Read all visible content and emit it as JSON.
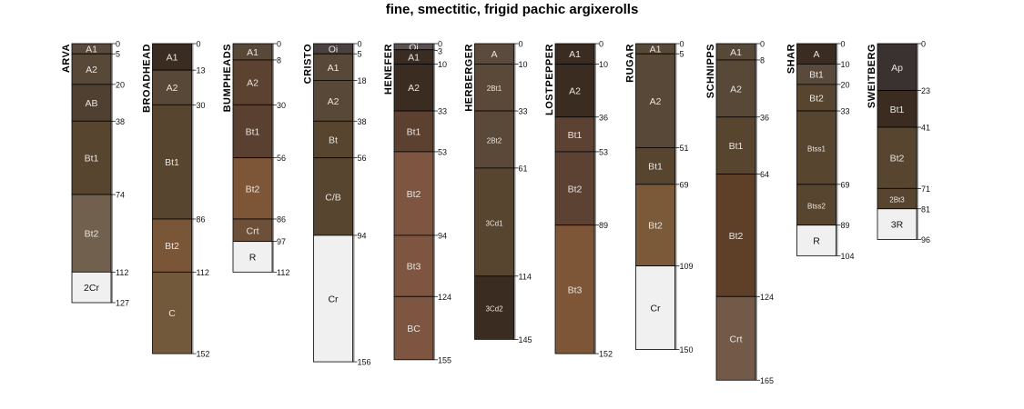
{
  "title": "fine, smectitic, frigid pachic argixerolls",
  "profiles": [
    {
      "name": "ARVA",
      "horizons": [
        {
          "name": "A1",
          "top": 0,
          "bottom": 5,
          "color": "#5a4a3c"
        },
        {
          "name": "A2",
          "top": 5,
          "bottom": 20,
          "color": "#574838"
        },
        {
          "name": "AB",
          "top": 20,
          "bottom": 38,
          "color": "#4f4032"
        },
        {
          "name": "Bt1",
          "top": 38,
          "bottom": 74,
          "color": "#574530"
        },
        {
          "name": "Bt2",
          "top": 74,
          "bottom": 112,
          "color": "#72604f"
        },
        {
          "name": "2Cr",
          "top": 112,
          "bottom": 127,
          "color": "#f0f0f0"
        }
      ]
    },
    {
      "name": "BROADHEAD",
      "horizons": [
        {
          "name": "A1",
          "top": 0,
          "bottom": 13,
          "color": "#3a2c20"
        },
        {
          "name": "A2",
          "top": 13,
          "bottom": 30,
          "color": "#574838"
        },
        {
          "name": "Bt1",
          "top": 30,
          "bottom": 86,
          "color": "#57452f"
        },
        {
          "name": "Bt2",
          "top": 86,
          "bottom": 112,
          "color": "#7a5638"
        },
        {
          "name": "C",
          "top": 112,
          "bottom": 152,
          "color": "#73593c"
        }
      ]
    },
    {
      "name": "BUMPHEADS",
      "horizons": [
        {
          "name": "A1",
          "top": 0,
          "bottom": 8,
          "color": "#584838"
        },
        {
          "name": "A2",
          "top": 8,
          "bottom": 30,
          "color": "#5c4230"
        },
        {
          "name": "Bt1",
          "top": 30,
          "bottom": 56,
          "color": "#5a4030"
        },
        {
          "name": "Bt2",
          "top": 56,
          "bottom": 86,
          "color": "#7d5638"
        },
        {
          "name": "Crt",
          "top": 86,
          "bottom": 97,
          "color": "#6e5038"
        },
        {
          "name": "R",
          "top": 97,
          "bottom": 112,
          "color": "#f0f0f0"
        }
      ]
    },
    {
      "name": "CRISTO",
      "horizons": [
        {
          "name": "Oi",
          "top": 0,
          "bottom": 5,
          "color": "#4a4040"
        },
        {
          "name": "A1",
          "top": 5,
          "bottom": 18,
          "color": "#574838"
        },
        {
          "name": "A2",
          "top": 18,
          "bottom": 38,
          "color": "#574838"
        },
        {
          "name": "Bt",
          "top": 38,
          "bottom": 56,
          "color": "#57452f"
        },
        {
          "name": "C/B",
          "top": 56,
          "bottom": 94,
          "color": "#57452f"
        },
        {
          "name": "Cr",
          "top": 94,
          "bottom": 156,
          "color": "#f0f0f0"
        }
      ]
    },
    {
      "name": "HENEFER",
      "horizons": [
        {
          "name": "Oi",
          "top": 0,
          "bottom": 3,
          "color": "#5a5050"
        },
        {
          "name": "A1",
          "top": 3,
          "bottom": 10,
          "color": "#3a2c20"
        },
        {
          "name": "A2",
          "top": 10,
          "bottom": 33,
          "color": "#3a2c20"
        },
        {
          "name": "Bt1",
          "top": 33,
          "bottom": 53,
          "color": "#5c4030"
        },
        {
          "name": "Bt2",
          "top": 53,
          "bottom": 94,
          "color": "#7d5540"
        },
        {
          "name": "Bt3",
          "top": 94,
          "bottom": 124,
          "color": "#7d5540"
        },
        {
          "name": "BC",
          "top": 124,
          "bottom": 155,
          "color": "#7d5540"
        }
      ]
    },
    {
      "name": "HERBERGER",
      "horizons": [
        {
          "name": "A",
          "top": 0,
          "bottom": 10,
          "color": "#5c4a3c"
        },
        {
          "name": "2Bt1",
          "top": 10,
          "bottom": 33,
          "color": "#5a4838"
        },
        {
          "name": "2Bt2",
          "top": 33,
          "bottom": 61,
          "color": "#5a4838"
        },
        {
          "name": "3Cd1",
          "top": 61,
          "bottom": 114,
          "color": "#57452f"
        },
        {
          "name": "3Cd2",
          "top": 114,
          "bottom": 145,
          "color": "#3a2c20"
        }
      ]
    },
    {
      "name": "LOSTPEPPER",
      "horizons": [
        {
          "name": "A1",
          "top": 0,
          "bottom": 10,
          "color": "#3a2c20"
        },
        {
          "name": "A2",
          "top": 10,
          "bottom": 36,
          "color": "#3a2c20"
        },
        {
          "name": "Bt1",
          "top": 36,
          "bottom": 53,
          "color": "#5c4233"
        },
        {
          "name": "Bt2",
          "top": 53,
          "bottom": 89,
          "color": "#5c4233"
        },
        {
          "name": "Bt3",
          "top": 89,
          "bottom": 152,
          "color": "#7d5638"
        }
      ]
    },
    {
      "name": "RUGAR",
      "horizons": [
        {
          "name": "A1",
          "top": 0,
          "bottom": 5,
          "color": "#584838"
        },
        {
          "name": "A2",
          "top": 5,
          "bottom": 51,
          "color": "#584838"
        },
        {
          "name": "Bt1",
          "top": 51,
          "bottom": 69,
          "color": "#57452f"
        },
        {
          "name": "Bt2",
          "top": 69,
          "bottom": 109,
          "color": "#7a5a38"
        },
        {
          "name": "Cr",
          "top": 109,
          "bottom": 150,
          "color": "#f0f0f0"
        }
      ]
    },
    {
      "name": "SCHNIPPS",
      "horizons": [
        {
          "name": "A1",
          "top": 0,
          "bottom": 8,
          "color": "#574838"
        },
        {
          "name": "A2",
          "top": 8,
          "bottom": 36,
          "color": "#574838"
        },
        {
          "name": "Bt1",
          "top": 36,
          "bottom": 64,
          "color": "#57452f"
        },
        {
          "name": "Bt2",
          "top": 64,
          "bottom": 124,
          "color": "#5e3f28"
        },
        {
          "name": "Crt",
          "top": 124,
          "bottom": 165,
          "color": "#735a48"
        }
      ]
    },
    {
      "name": "SHAR",
      "horizons": [
        {
          "name": "A",
          "top": 0,
          "bottom": 10,
          "color": "#3a2c20"
        },
        {
          "name": "Bt1",
          "top": 10,
          "bottom": 20,
          "color": "#5a4a3c"
        },
        {
          "name": "Bt2",
          "top": 20,
          "bottom": 33,
          "color": "#57452f"
        },
        {
          "name": "Btss1",
          "top": 33,
          "bottom": 69,
          "color": "#57452f"
        },
        {
          "name": "Btss2",
          "top": 69,
          "bottom": 89,
          "color": "#57452f"
        },
        {
          "name": "R",
          "top": 89,
          "bottom": 104,
          "color": "#f0f0f0"
        }
      ]
    },
    {
      "name": "SWEITBERG",
      "horizons": [
        {
          "name": "Ap",
          "top": 0,
          "bottom": 23,
          "color": "#3a3230"
        },
        {
          "name": "Bt1",
          "top": 23,
          "bottom": 41,
          "color": "#3a2c20"
        },
        {
          "name": "Bt2",
          "top": 41,
          "bottom": 71,
          "color": "#57452f"
        },
        {
          "name": "2Bt3",
          "top": 71,
          "bottom": 81,
          "color": "#57452f"
        },
        {
          "name": "3R",
          "top": 81,
          "bottom": 96,
          "color": "#f0f0f0"
        }
      ]
    }
  ]
}
